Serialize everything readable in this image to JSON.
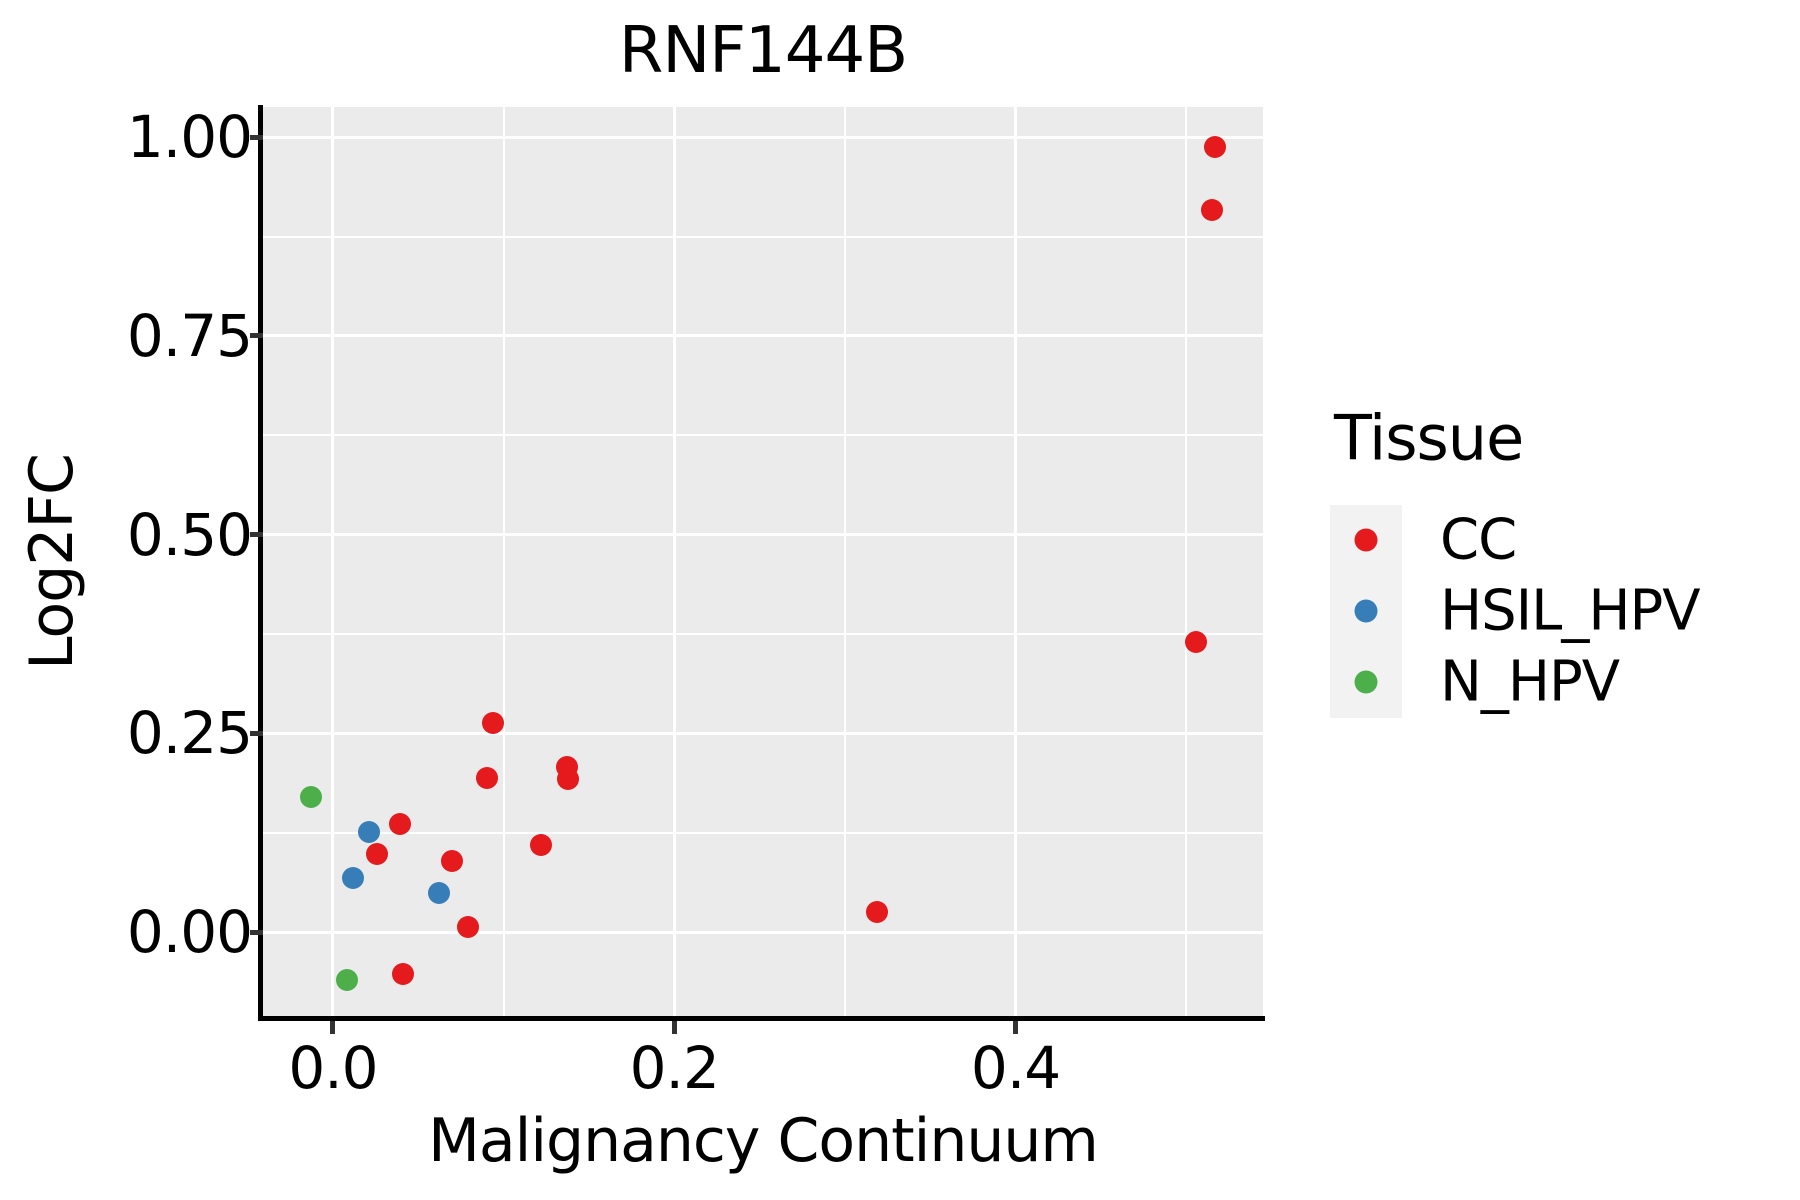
{
  "figure": {
    "background": "#ffffff",
    "panel_bg": "#EBEBEB",
    "grid_color": "#FFFFFF",
    "axis_line_color": "#000000",
    "tick_mark_color": "#333333",
    "text_color": "#000000",
    "legend_key_bg": "#F2F2F2"
  },
  "chart_data": {
    "type": "scatter",
    "title": "RNF144B",
    "xlabel": "Malignancy Continuum",
    "ylabel": "Log2FC",
    "xlim": [
      -0.041,
      0.545
    ],
    "ylim": [
      -0.108,
      1.038
    ],
    "grid": "major+minor, white on gray panel",
    "x_ticks": {
      "values": [
        0.0,
        0.2,
        0.4
      ],
      "labels": [
        "0.0",
        "0.2",
        "0.4"
      ]
    },
    "y_ticks": {
      "values": [
        0.0,
        0.25,
        0.5,
        0.75,
        1.0
      ],
      "labels": [
        "0.00",
        "0.25",
        "0.50",
        "0.75",
        "1.00"
      ]
    },
    "x_minor": [
      0.1,
      0.3,
      0.5
    ],
    "y_minor": [
      0.125,
      0.375,
      0.625,
      0.875
    ],
    "legend": {
      "title": "Tissue",
      "position": "right"
    },
    "series": [
      {
        "name": "CC",
        "color": "#E41A1C",
        "points": [
          [
            0.517,
            0.988
          ],
          [
            0.515,
            0.908
          ],
          [
            0.506,
            0.365
          ],
          [
            0.094,
            0.263
          ],
          [
            0.09,
            0.194
          ],
          [
            0.137,
            0.208
          ],
          [
            0.138,
            0.193
          ],
          [
            0.039,
            0.136
          ],
          [
            0.026,
            0.098
          ],
          [
            0.07,
            0.089
          ],
          [
            0.122,
            0.11
          ],
          [
            0.079,
            0.006
          ],
          [
            0.041,
            -0.053
          ],
          [
            0.319,
            0.025
          ]
        ]
      },
      {
        "name": "HSIL_HPV",
        "color": "#377EB8",
        "points": [
          [
            0.021,
            0.126
          ],
          [
            0.012,
            0.068
          ],
          [
            0.062,
            0.049
          ]
        ]
      },
      {
        "name": "N_HPV",
        "color": "#4DAF4A",
        "points": [
          [
            -0.013,
            0.17
          ],
          [
            0.008,
            -0.06
          ]
        ]
      }
    ]
  }
}
